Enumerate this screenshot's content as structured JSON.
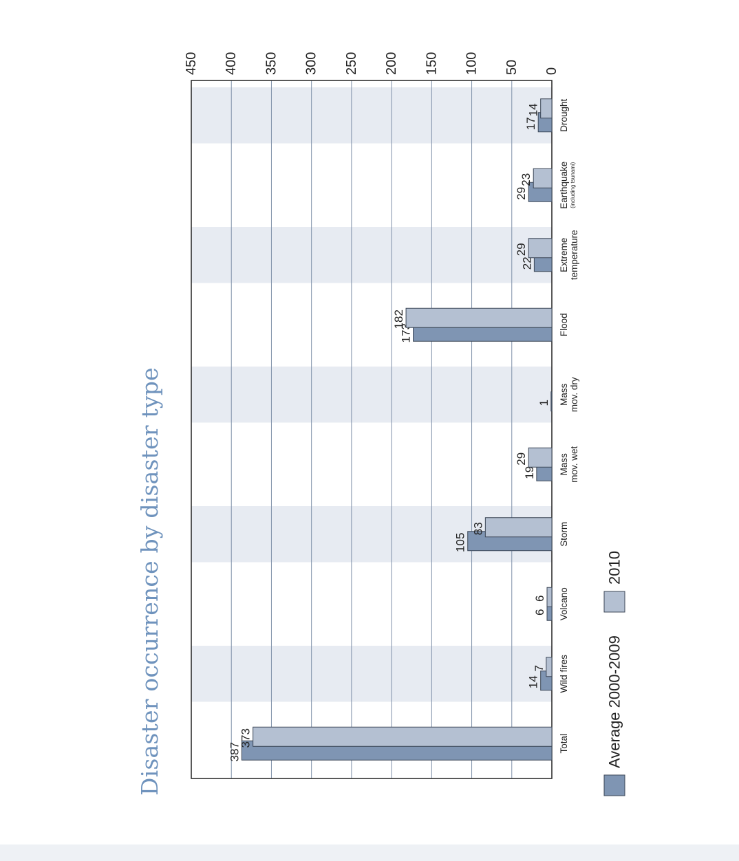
{
  "title": "Disaster occurrence by disaster type",
  "colors": {
    "series_dark": "#7f95b3",
    "series_light": "#b4c0d2",
    "title": "#6f93bd",
    "band": "#e7ebf2",
    "grid": "#7d8fa8"
  },
  "chart_data": {
    "type": "bar",
    "orientation": "vertical",
    "title": "Disaster occurrence by disaster type",
    "categories": [
      "Drought",
      "Earthquake",
      "Extreme temperature",
      "Flood",
      "Mass mov. dry",
      "Mass mov. wet",
      "Storm",
      "Volcano",
      "Wild fires",
      "Total"
    ],
    "category_sublabels": {
      "Earthquake": "(including tsunami)"
    },
    "series": [
      {
        "name": "Average 2000-2009",
        "values": [
          17,
          29,
          22,
          173,
          1,
          19,
          105,
          6,
          14,
          387
        ]
      },
      {
        "name": "2010",
        "values": [
          14,
          23,
          29,
          182,
          0,
          29,
          83,
          6,
          7,
          373
        ]
      }
    ],
    "data_labels": [
      [
        "17",
        "29",
        "22",
        "173",
        "1",
        "19",
        "105",
        "6",
        "14",
        "387"
      ],
      [
        "14",
        "23",
        "29",
        "182",
        "",
        "29",
        "83",
        "6",
        "7",
        "373"
      ]
    ],
    "ylim": [
      0,
      450
    ],
    "yticks": [
      0,
      50,
      100,
      150,
      200,
      250,
      300,
      350,
      400,
      450
    ],
    "grid": true,
    "legend": "bottom"
  }
}
